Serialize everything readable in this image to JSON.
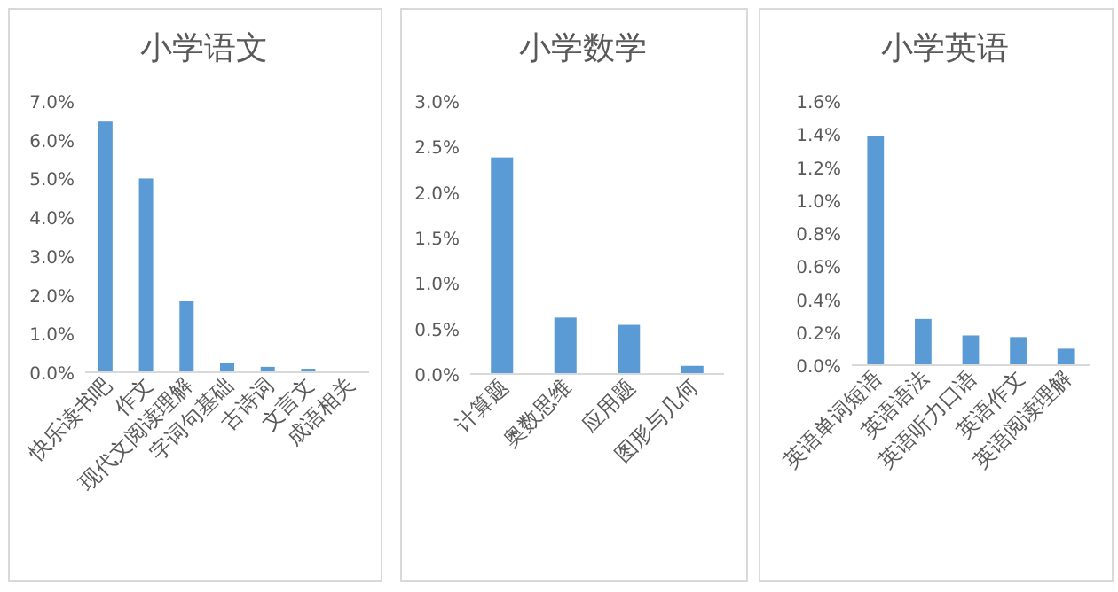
{
  "chart_data": [
    {
      "type": "bar",
      "title": "小学语文",
      "categories": [
        "快乐读书吧",
        "作文",
        "现代文阅读理解",
        "字词句基础",
        "古诗词",
        "文言文",
        "成语相关"
      ],
      "values": [
        6.47,
        5.0,
        1.83,
        0.23,
        0.14,
        0.09,
        0
      ],
      "color": "#5b9bd5",
      "ylim": [
        0,
        7
      ],
      "yticks": [
        {
          "value": 0,
          "label": "0.0%"
        },
        {
          "value": 1,
          "label": "1.0%"
        },
        {
          "value": 2,
          "label": "2.0%"
        },
        {
          "value": 3,
          "label": "3.0%"
        },
        {
          "value": 4,
          "label": "4.0%"
        },
        {
          "value": 5,
          "label": "5.0%"
        },
        {
          "value": 6,
          "label": "6.0%"
        },
        {
          "value": 7,
          "label": "7.0%"
        }
      ],
      "grid": false
    },
    {
      "type": "bar",
      "title": "小学数学",
      "categories": [
        "计算题",
        "奥数思维",
        "应用题",
        "图形与几何"
      ],
      "values": [
        2.38,
        0.62,
        0.54,
        0.09
      ],
      "color": "#5b9bd5",
      "ylim": [
        0,
        3
      ],
      "yticks": [
        {
          "value": 0,
          "label": "0.0%"
        },
        {
          "value": 0.5,
          "label": "0.5%"
        },
        {
          "value": 1,
          "label": "1.0%"
        },
        {
          "value": 1.5,
          "label": "1.5%"
        },
        {
          "value": 2,
          "label": "2.0%"
        },
        {
          "value": 2.5,
          "label": "2.5%"
        },
        {
          "value": 3,
          "label": "3.0%"
        }
      ],
      "grid": false
    },
    {
      "type": "bar",
      "title": "小学英语",
      "categories": [
        "英语单词短语",
        "英语语法",
        "英语听力口语",
        "英语作文",
        "英语阅读理解"
      ],
      "values": [
        1.39,
        0.28,
        0.18,
        0.17,
        0.1
      ],
      "color": "#5b9bd5",
      "ylim": [
        0,
        1.6
      ],
      "yticks": [
        {
          "value": 0,
          "label": "0.0%"
        },
        {
          "value": 0.2,
          "label": "0.2%"
        },
        {
          "value": 0.4,
          "label": "0.4%"
        },
        {
          "value": 0.6,
          "label": "0.6%"
        },
        {
          "value": 0.8,
          "label": "0.8%"
        },
        {
          "value": 1,
          "label": "1.0%"
        },
        {
          "value": 1.2,
          "label": "1.2%"
        },
        {
          "value": 1.4,
          "label": "1.4%"
        },
        {
          "value": 1.6,
          "label": "1.6%"
        }
      ],
      "grid": false
    }
  ]
}
